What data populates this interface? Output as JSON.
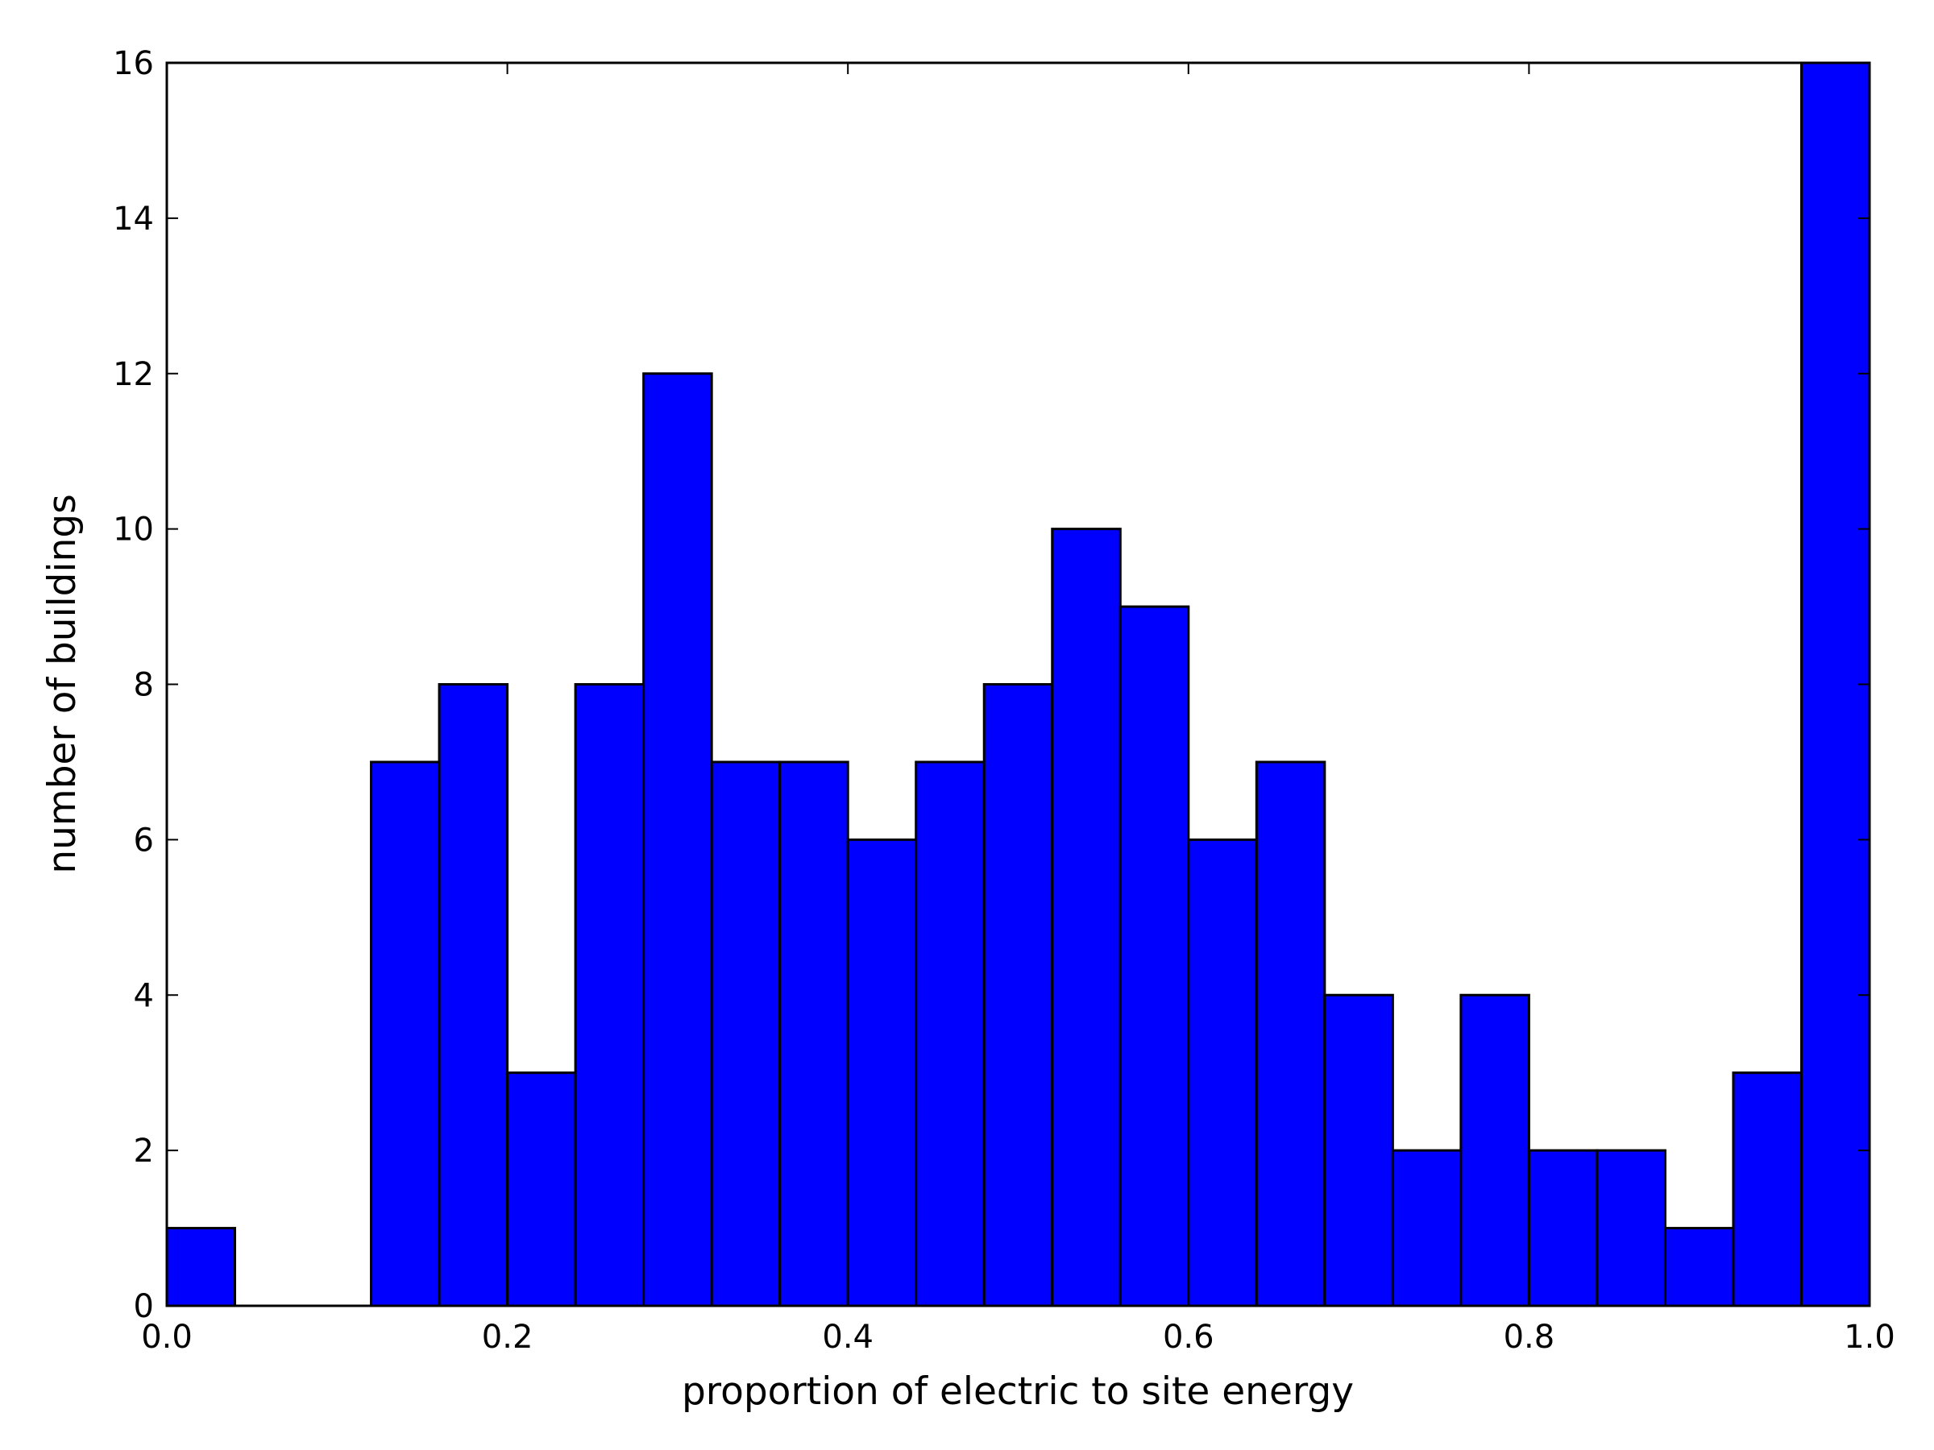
{
  "chart_data": {
    "type": "bar",
    "subtype": "histogram",
    "xlabel": "proportion of electric to site energy",
    "ylabel": "number of buildings",
    "xlim": [
      0.0,
      1.0
    ],
    "ylim": [
      0,
      16
    ],
    "bin_width": 0.04,
    "bin_edges": [
      0.0,
      0.04,
      0.08,
      0.12,
      0.16,
      0.2,
      0.24,
      0.28,
      0.32,
      0.36,
      0.4,
      0.44,
      0.48,
      0.52,
      0.56,
      0.6,
      0.64,
      0.68,
      0.72,
      0.76,
      0.8,
      0.84,
      0.88,
      0.92,
      0.96,
      1.0
    ],
    "values": [
      1,
      0,
      0,
      7,
      8,
      3,
      8,
      12,
      7,
      7,
      6,
      7,
      8,
      10,
      9,
      6,
      7,
      4,
      2,
      4,
      2,
      2,
      1,
      3,
      16
    ],
    "xticks": [
      "0.0",
      "0.2",
      "0.4",
      "0.6",
      "0.8",
      "1.0"
    ],
    "yticks": [
      "0",
      "2",
      "4",
      "6",
      "8",
      "10",
      "12",
      "14",
      "16"
    ],
    "bar_color": "#0000ff",
    "edge_color": "#000000",
    "grid": false,
    "legend": "none"
  }
}
